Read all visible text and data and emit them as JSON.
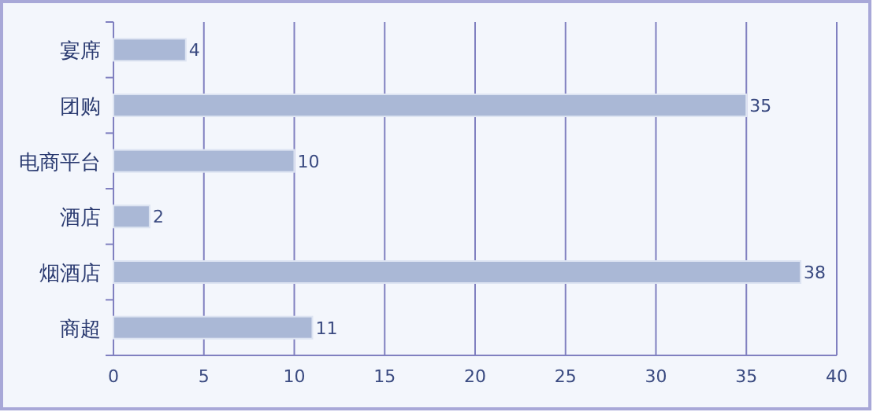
{
  "chart_data": {
    "type": "bar",
    "orientation": "horizontal",
    "categories": [
      "宴席",
      "团购",
      "电商平台",
      "酒店",
      "烟酒店",
      "商超"
    ],
    "values": [
      4,
      35,
      10,
      2,
      38,
      11
    ],
    "color": "#aab8d6",
    "xlim": [
      0,
      40
    ],
    "xticks": [
      0,
      5,
      10,
      15,
      20,
      25,
      30,
      35,
      40
    ],
    "grid": "x",
    "data_labels": true
  }
}
